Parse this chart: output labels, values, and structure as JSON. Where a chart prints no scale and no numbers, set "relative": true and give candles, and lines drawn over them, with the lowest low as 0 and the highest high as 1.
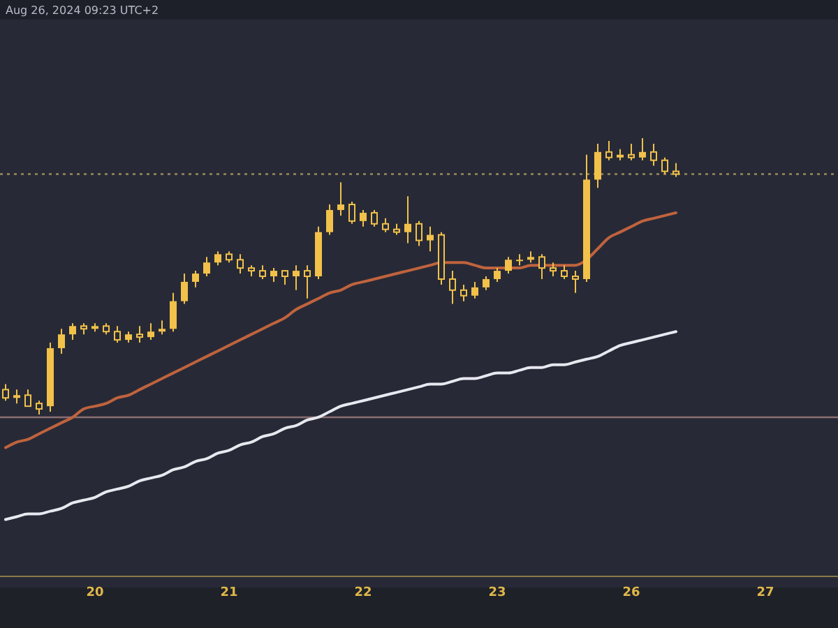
{
  "chart_data": {
    "type": "candlestick",
    "relative": true,
    "color": "#f2c14a",
    "categories": [
      null,
      null,
      null,
      null,
      null,
      null,
      null,
      null,
      "20",
      null,
      null,
      null,
      null,
      null,
      null,
      null,
      null,
      null,
      null,
      null,
      "21",
      null,
      null,
      null,
      null,
      null,
      null,
      null,
      null,
      null,
      null,
      null,
      "22",
      null,
      null,
      null,
      null,
      null,
      null,
      null,
      null,
      null,
      null,
      null,
      "23",
      null,
      null,
      null,
      null,
      null,
      null,
      null,
      null,
      null,
      null,
      null,
      "26",
      null,
      null,
      null,
      null,
      null,
      null,
      null,
      null,
      null,
      null,
      null,
      "27",
      null,
      null,
      null,
      null,
      null,
      null
    ],
    "ohlc": [
      [
        0.09,
        0.11,
        0.05,
        0.06
      ],
      [
        0.06,
        0.09,
        0.04,
        0.07
      ],
      [
        0.07,
        0.09,
        0.03,
        0.03
      ],
      [
        0.04,
        0.05,
        0,
        0.02
      ],
      [
        0.03,
        0.26,
        0.01,
        0.24
      ],
      [
        0.24,
        0.31,
        0.22,
        0.29
      ],
      [
        0.29,
        0.33,
        0.27,
        0.32
      ],
      [
        0.32,
        0.33,
        0.29,
        0.31
      ],
      [
        0.31,
        0.33,
        0.3,
        0.32
      ],
      [
        0.32,
        0.33,
        0.29,
        0.3
      ],
      [
        0.3,
        0.32,
        0.26,
        0.27
      ],
      [
        0.27,
        0.3,
        0.26,
        0.29
      ],
      [
        0.29,
        0.32,
        0.26,
        0.28
      ],
      [
        0.28,
        0.33,
        0.27,
        0.3
      ],
      [
        0.3,
        0.34,
        0.29,
        0.31
      ],
      [
        0.31,
        0.44,
        0.3,
        0.41
      ],
      [
        0.41,
        0.51,
        0.4,
        0.48
      ],
      [
        0.48,
        0.52,
        0.46,
        0.51
      ],
      [
        0.51,
        0.57,
        0.5,
        0.55
      ],
      [
        0.55,
        0.59,
        0.54,
        0.58
      ],
      [
        0.58,
        0.59,
        0.55,
        0.56
      ],
      [
        0.56,
        0.58,
        0.51,
        0.53
      ],
      [
        0.53,
        0.54,
        0.5,
        0.52
      ],
      [
        0.52,
        0.54,
        0.49,
        0.5
      ],
      [
        0.5,
        0.53,
        0.48,
        0.52
      ],
      [
        0.52,
        0.52,
        0.47,
        0.5
      ],
      [
        0.5,
        0.54,
        0.45,
        0.52
      ],
      [
        0.52,
        0.54,
        0.42,
        0.5
      ],
      [
        0.5,
        0.68,
        0.49,
        0.66
      ],
      [
        0.66,
        0.76,
        0.65,
        0.74
      ],
      [
        0.74,
        0.84,
        0.72,
        0.76
      ],
      [
        0.76,
        0.77,
        0.69,
        0.7
      ],
      [
        0.7,
        0.74,
        0.68,
        0.73
      ],
      [
        0.73,
        0.74,
        0.68,
        0.69
      ],
      [
        0.69,
        0.71,
        0.66,
        0.67
      ],
      [
        0.67,
        0.69,
        0.65,
        0.66
      ],
      [
        0.66,
        0.79,
        0.62,
        0.69
      ],
      [
        0.69,
        0.7,
        0.61,
        0.63
      ],
      [
        0.63,
        0.68,
        0.59,
        0.65
      ],
      [
        0.65,
        0.66,
        0.47,
        0.49
      ],
      [
        0.49,
        0.52,
        0.4,
        0.45
      ],
      [
        0.45,
        0.47,
        0.41,
        0.43
      ],
      [
        0.43,
        0.48,
        0.42,
        0.46
      ],
      [
        0.46,
        0.5,
        0.45,
        0.49
      ],
      [
        0.49,
        0.53,
        0.48,
        0.52
      ],
      [
        0.52,
        0.57,
        0.51,
        0.56
      ],
      [
        0.56,
        0.58,
        0.54,
        0.56
      ],
      [
        0.56,
        0.59,
        0.55,
        0.57
      ],
      [
        0.57,
        0.58,
        0.49,
        0.53
      ],
      [
        0.53,
        0.55,
        0.5,
        0.52
      ],
      [
        0.52,
        0.54,
        0.49,
        0.5
      ],
      [
        0.5,
        0.52,
        0.44,
        0.49
      ],
      [
        0.49,
        0.94,
        0.48,
        0.85
      ],
      [
        0.85,
        0.98,
        0.82,
        0.95
      ],
      [
        0.95,
        0.99,
        0.92,
        0.93
      ],
      [
        0.93,
        0.96,
        0.92,
        0.94
      ],
      [
        0.94,
        0.98,
        0.92,
        0.93
      ],
      [
        0.93,
        1,
        0.92,
        0.95
      ],
      [
        0.95,
        0.98,
        0.9,
        0.92
      ],
      [
        0.92,
        0.93,
        0.87,
        0.88
      ],
      [
        0.88,
        0.91,
        0.86,
        0.87
      ],
      null,
      null,
      null,
      null,
      null,
      null,
      null,
      null,
      null,
      null,
      null,
      null,
      null,
      null
    ],
    "series": [
      {
        "type": "line",
        "color": "#c0633e",
        "values": [
          -0.12,
          -0.1,
          -0.09,
          -0.07,
          -0.05,
          -0.03,
          -0.01,
          0.02,
          0.03,
          0.04,
          0.06,
          0.07,
          0.09,
          0.11,
          0.13,
          0.15,
          0.17,
          0.19,
          0.21,
          0.23,
          0.25,
          0.27,
          0.29,
          0.31,
          0.33,
          0.35,
          0.38,
          0.4,
          0.42,
          0.44,
          0.45,
          0.47,
          0.48,
          0.49,
          0.5,
          0.51,
          0.52,
          0.53,
          0.54,
          0.55,
          0.55,
          0.55,
          0.54,
          0.53,
          0.53,
          0.53,
          0.53,
          0.54,
          0.54,
          0.54,
          0.54,
          0.54,
          0.56,
          0.6,
          0.64,
          0.66,
          0.68,
          0.7,
          0.71,
          0.72,
          0.73,
          null,
          null,
          null,
          null,
          null,
          null,
          null,
          null,
          null,
          null,
          null,
          null,
          null,
          null
        ]
      },
      {
        "type": "line",
        "color": "#e8e8f0",
        "values": [
          -0.38,
          -0.37,
          -0.36,
          -0.36,
          -0.35,
          -0.34,
          -0.32,
          -0.31,
          -0.3,
          -0.28,
          -0.27,
          -0.26,
          -0.24,
          -0.23,
          -0.22,
          -0.2,
          -0.19,
          -0.17,
          -0.16,
          -0.14,
          -0.13,
          -0.11,
          -0.1,
          -0.08,
          -0.07,
          -0.05,
          -0.04,
          -0.02,
          -0.01,
          0.01,
          0.03,
          0.04,
          0.05,
          0.06,
          0.07,
          0.08,
          0.09,
          0.1,
          0.11,
          0.11,
          0.12,
          0.13,
          0.13,
          0.14,
          0.15,
          0.15,
          0.16,
          0.17,
          0.17,
          0.18,
          0.18,
          0.19,
          0.2,
          0.21,
          0.23,
          0.25,
          0.26,
          0.27,
          0.28,
          0.29,
          0.3,
          null,
          null,
          null,
          null,
          null,
          null,
          null,
          null,
          null,
          null,
          null,
          null,
          null,
          null
        ]
      }
    ],
    "ref_lines": [
      {
        "axis": "y",
        "value": 0.87,
        "color": "#9c8a5c",
        "line_style": "dotted"
      },
      {
        "axis": "y",
        "value": -0.01,
        "color": "#8c6f72",
        "line_style": "solid"
      }
    ],
    "annotations": [
      "Aug 26, 2024 09:23 UTC+2"
    ]
  }
}
